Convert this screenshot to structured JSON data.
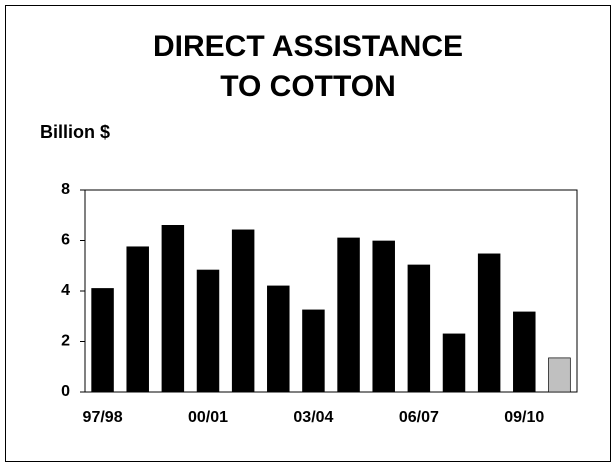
{
  "chart_data": {
    "type": "bar",
    "title": [
      "DIRECT ASSISTANCE",
      "TO COTTON"
    ],
    "y_label": "Billion $",
    "categories": [
      "97/98",
      null,
      null,
      "00/01",
      null,
      null,
      "03/04",
      null,
      null,
      "06/07",
      null,
      null,
      "09/10",
      null
    ],
    "values": [
      4.1,
      5.75,
      6.6,
      4.83,
      6.42,
      4.2,
      3.25,
      6.1,
      5.98,
      5.03,
      2.3,
      5.47,
      3.17,
      1.35
    ],
    "colors": [
      "#000000",
      "#000000",
      "#000000",
      "#000000",
      "#000000",
      "#000000",
      "#000000",
      "#000000",
      "#000000",
      "#000000",
      "#000000",
      "#000000",
      "#000000",
      "#c0c0c0"
    ],
    "ylim": [
      0,
      8
    ],
    "yticks": [
      0,
      2,
      4,
      6,
      8
    ],
    "grid": false
  }
}
